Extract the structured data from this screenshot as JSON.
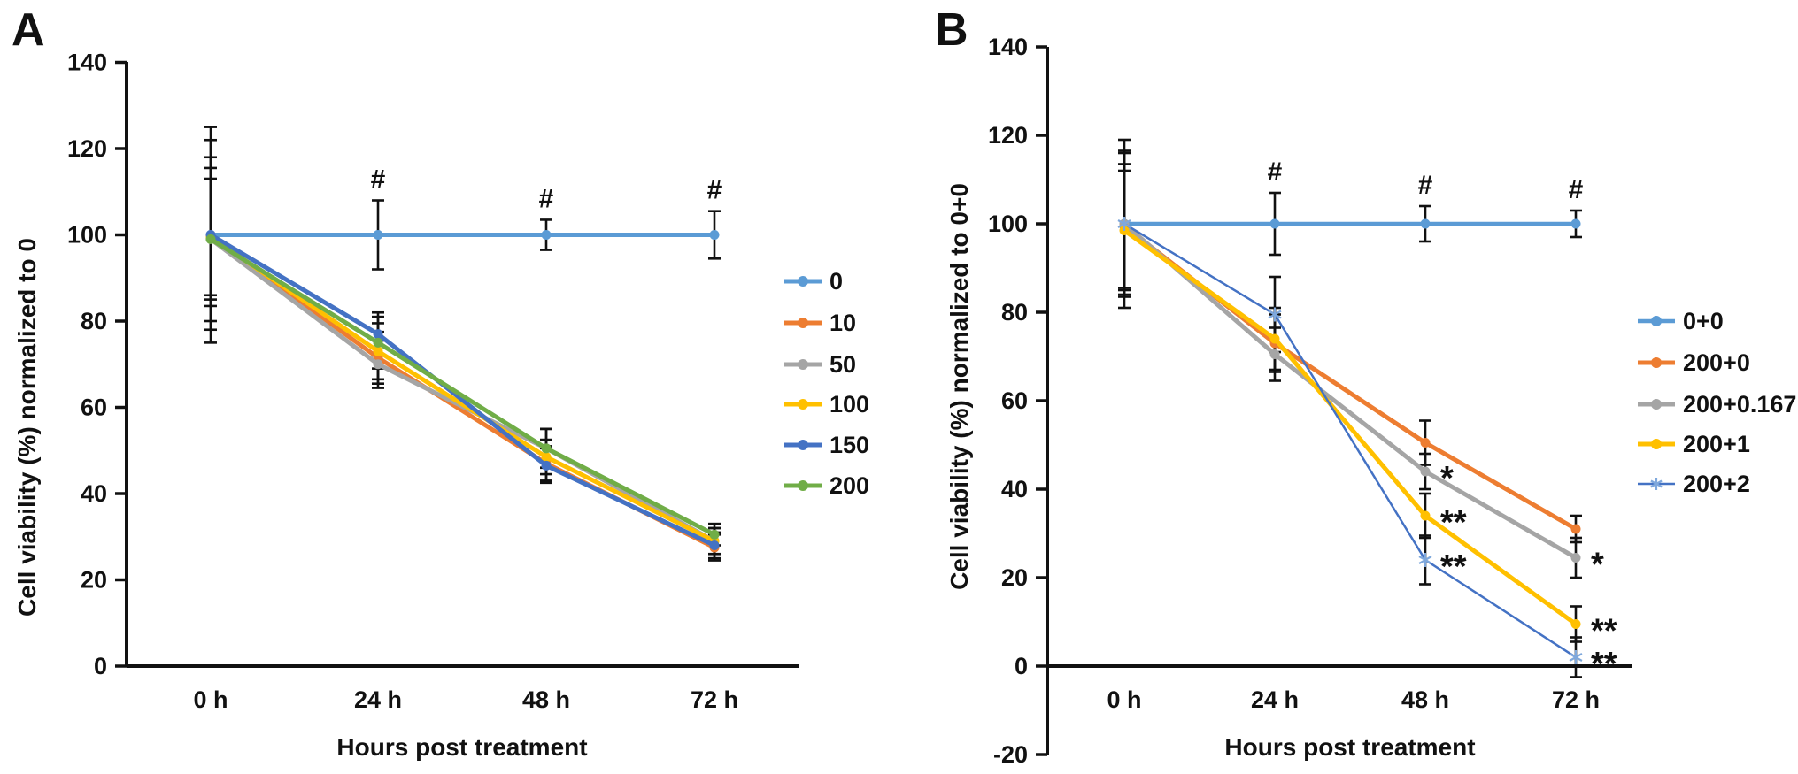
{
  "chart_data": [
    {
      "type": "line",
      "panel_label": "A",
      "title": "",
      "xlabel": "Hours post treatment",
      "ylabel": "Cell viability (%) normalized to 0",
      "categories": [
        "0 h",
        "24 h",
        "48 h",
        "72 h"
      ],
      "ylim": [
        0,
        140
      ],
      "ytick_step": 20,
      "x_axis_at": 0,
      "grid": false,
      "legend_position": "right",
      "series": [
        {
          "name": "0",
          "color": "#5B9BD5",
          "marker": "circle",
          "values": [
            100,
            100,
            100,
            100
          ],
          "errors": [
            25,
            8,
            3.5,
            5.5
          ]
        },
        {
          "name": "10",
          "color": "#ED7D31",
          "marker": "circle",
          "values": [
            99.5,
            71.5,
            47,
            27.5
          ],
          "errors": [
            13.5,
            6,
            4,
            3
          ]
        },
        {
          "name": "50",
          "color": "#A5A5A5",
          "marker": "circle",
          "values": [
            99,
            70,
            50.5,
            29
          ],
          "errors": [
            19,
            5.5,
            4.5,
            3
          ]
        },
        {
          "name": "100",
          "color": "#FFC000",
          "marker": "circle",
          "values": [
            99.5,
            73,
            48.5,
            29
          ],
          "errors": [
            16,
            6.5,
            4,
            3
          ]
        },
        {
          "name": "150",
          "color": "#4472C4",
          "marker": "circle",
          "values": [
            100,
            77,
            46.5,
            28
          ],
          "errors": [
            22,
            5,
            4,
            3
          ]
        },
        {
          "name": "200",
          "color": "#70AD47",
          "marker": "circle",
          "values": [
            99,
            75,
            50.5,
            30.5
          ],
          "errors": [
            14,
            6,
            4.5,
            2.5
          ]
        }
      ],
      "annotations": [
        {
          "text": "#",
          "series": "0",
          "point": 1,
          "position": "above"
        },
        {
          "text": "#",
          "series": "0",
          "point": 2,
          "position": "above"
        },
        {
          "text": "#",
          "series": "0",
          "point": 3,
          "position": "above"
        }
      ]
    },
    {
      "type": "line",
      "panel_label": "B",
      "title": "",
      "xlabel": "Hours post treatment",
      "ylabel": "Cell viability (%) normalized to 0+0",
      "categories": [
        "0 h",
        "24 h",
        "48 h",
        "72 h"
      ],
      "ylim": [
        -20,
        140
      ],
      "ytick_step": 20,
      "x_axis_at": 0,
      "grid": false,
      "legend_position": "right",
      "series": [
        {
          "name": "0+0",
          "color": "#5B9BD5",
          "marker": "circle",
          "values": [
            100,
            100,
            100,
            100
          ],
          "errors": [
            16.5,
            7,
            4,
            3
          ]
        },
        {
          "name": "200+0",
          "color": "#ED7D31",
          "marker": "circle",
          "values": [
            99.5,
            73,
            50.5,
            31
          ],
          "errors": [
            14,
            6.5,
            5,
            3
          ]
        },
        {
          "name": "200+0.167",
          "color": "#A5A5A5",
          "marker": "circle",
          "values": [
            100,
            70.5,
            44,
            24.5
          ],
          "errors": [
            19,
            6,
            4,
            4.5
          ]
        },
        {
          "name": "200+1",
          "color": "#FFC000",
          "marker": "circle",
          "values": [
            98.5,
            74,
            34,
            9.5
          ],
          "errors": [
            13.5,
            7,
            5,
            4
          ]
        },
        {
          "name": "200+2",
          "color": "#4472C4",
          "marker": "star",
          "marker_color": "#7FA8DC",
          "values": [
            100,
            79.5,
            24,
            2
          ],
          "errors": [
            16,
            8.5,
            5.5,
            4.5
          ]
        }
      ],
      "annotations": [
        {
          "text": "#",
          "series": "0+0",
          "point": 1,
          "position": "above"
        },
        {
          "text": "#",
          "series": "0+0",
          "point": 2,
          "position": "above"
        },
        {
          "text": "#",
          "series": "0+0",
          "point": 3,
          "position": "above"
        },
        {
          "text": "*",
          "series": "200+0.167",
          "point": 2,
          "position": "right"
        },
        {
          "text": "**",
          "series": "200+1",
          "point": 2,
          "position": "right"
        },
        {
          "text": "**",
          "series": "200+2",
          "point": 2,
          "position": "right"
        },
        {
          "text": "*",
          "series": "200+0.167",
          "point": 3,
          "position": "right"
        },
        {
          "text": "**",
          "series": "200+1",
          "point": 3,
          "position": "right"
        },
        {
          "text": "**",
          "series": "200+2",
          "point": 3,
          "position": "right"
        }
      ]
    }
  ]
}
